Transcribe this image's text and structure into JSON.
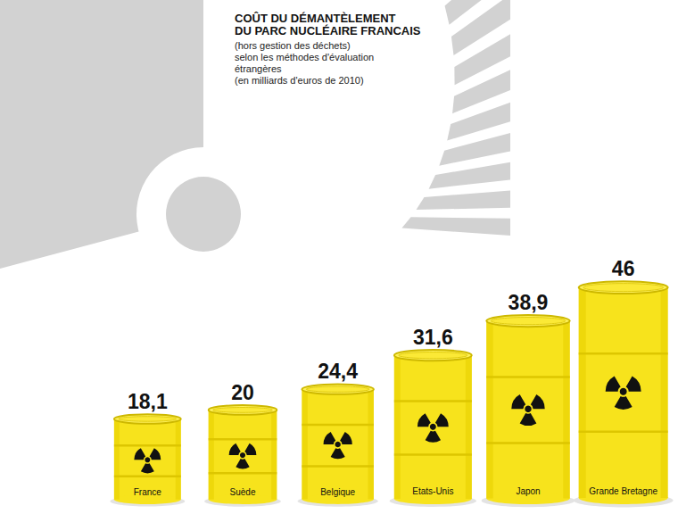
{
  "chart_data": {
    "type": "bar",
    "title": "COÛT DU DÉMANTÈLEMENT\nDU PARC NUCLÉAIRE FRANCAIS",
    "subtitle": "(hors gestion des déchets)\nselon les méthodes d'évaluation\nétrangères\n(en milliards d'euros de 2010)",
    "categories": [
      "France",
      "Suède",
      "Belgique",
      "Etats-Unis",
      "Japon",
      "Grande Bretagne"
    ],
    "values": [
      18.1,
      20,
      24.4,
      31.6,
      38.9,
      46
    ],
    "value_labels": [
      "18,1",
      "20",
      "24,4",
      "31,6",
      "38,9",
      "46"
    ],
    "color": "#f7e31c",
    "ylim": [
      0,
      50
    ],
    "data_labels": true,
    "tick_labels": false,
    "grid": false
  }
}
